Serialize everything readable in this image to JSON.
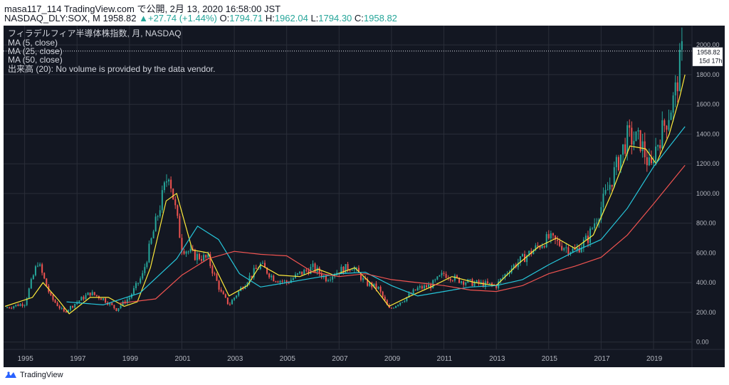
{
  "header": {
    "publish_line": "masa117_114 TradingView.com で公開, 2月 13, 2020 16:58:00 JST",
    "symbol": "NASDAQ_DLY:SOX, M",
    "last": "1958.82",
    "change": "+27.74 (+1.44%)",
    "o_label": "O:",
    "o_value": "1794.71",
    "h_label": "H:",
    "h_value": "1962.04",
    "l_label": "L:",
    "l_value": "1794.30",
    "c_label": "C:",
    "c_value": "1958.82"
  },
  "legend": {
    "title": "フィラデルフィア半導体株指数, 月, NASDAQ",
    "ma5": "MA (5, close)",
    "ma25": "MA (25, close)",
    "ma50": "MA (50, close)",
    "volume": "出来高 (20): No volume is provided by the data vendor."
  },
  "price_tag": {
    "price": "1958.82",
    "countdown": "15d 17h"
  },
  "footer": {
    "brand": "TradingView"
  },
  "colors": {
    "background": "#131722",
    "grid": "#2a2e39",
    "up": "#26a69a",
    "down": "#ef5350",
    "ma5": "#ffeb3b",
    "ma25": "#26c6da",
    "ma50": "#ef5350",
    "axis_text": "#b2b5be"
  },
  "chart_data": {
    "type": "candlestick",
    "interval": "1M",
    "x_range": [
      1994.25,
      2020.25
    ],
    "ylim": [
      -50,
      2130
    ],
    "y_ticks": [
      0,
      200,
      400,
      600,
      800,
      1000,
      1200,
      1400,
      1600,
      1800,
      2000
    ],
    "y_tick_labels": [
      "0.00",
      "200.00",
      "400.00",
      "600.00",
      "800.00",
      "1000.00",
      "1200.00",
      "1400.00",
      "1600.00",
      "1800.00",
      "2000.00"
    ],
    "x_ticks": [
      1995,
      1997,
      1999,
      2001,
      2003,
      2005,
      2007,
      2009,
      2011,
      2013,
      2015,
      2017,
      2019
    ],
    "x_tick_labels": [
      "1995",
      "1997",
      "1999",
      "2001",
      "2003",
      "2005",
      "2007",
      "2009",
      "2011",
      "2013",
      "2015",
      "2017",
      "2019"
    ],
    "yearly_closes": [
      [
        1994.25,
        230
      ],
      [
        1995.0,
        260
      ],
      [
        1995.5,
        540
      ],
      [
        1996.0,
        300
      ],
      [
        1996.5,
        200
      ],
      [
        1997.0,
        270
      ],
      [
        1997.5,
        330
      ],
      [
        1998.0,
        290
      ],
      [
        1998.5,
        220
      ],
      [
        1999.0,
        300
      ],
      [
        1999.5,
        450
      ],
      [
        2000.0,
        800
      ],
      [
        2000.5,
        1150
      ],
      [
        2001.0,
        640
      ],
      [
        2001.5,
        580
      ],
      [
        2002.0,
        560
      ],
      [
        2002.5,
        330
      ],
      [
        2002.8,
        250
      ],
      [
        2003.0,
        300
      ],
      [
        2003.5,
        420
      ],
      [
        2004.0,
        520
      ],
      [
        2004.5,
        430
      ],
      [
        2005.0,
        400
      ],
      [
        2005.5,
        460
      ],
      [
        2006.0,
        500
      ],
      [
        2006.5,
        430
      ],
      [
        2007.0,
        480
      ],
      [
        2007.5,
        510
      ],
      [
        2008.0,
        400
      ],
      [
        2008.5,
        360
      ],
      [
        2008.9,
        220
      ],
      [
        2009.0,
        230
      ],
      [
        2009.5,
        290
      ],
      [
        2010.0,
        360
      ],
      [
        2010.5,
        380
      ],
      [
        2011.0,
        460
      ],
      [
        2011.5,
        420
      ],
      [
        2012.0,
        400
      ],
      [
        2012.5,
        390
      ],
      [
        2013.0,
        380
      ],
      [
        2013.5,
        490
      ],
      [
        2014.0,
        560
      ],
      [
        2014.5,
        630
      ],
      [
        2015.0,
        700
      ],
      [
        2015.5,
        650
      ],
      [
        2016.0,
        610
      ],
      [
        2016.5,
        700
      ],
      [
        2017.0,
        910
      ],
      [
        2017.5,
        1140
      ],
      [
        2018.0,
        1380
      ],
      [
        2018.5,
        1350
      ],
      [
        2018.9,
        1150
      ],
      [
        2019.0,
        1270
      ],
      [
        2019.5,
        1500
      ],
      [
        2019.8,
        1650
      ],
      [
        2020.0,
        1860
      ],
      [
        2020.1,
        1958.82
      ]
    ],
    "ma_series": [
      {
        "name": "MA (5, close)",
        "points": [
          [
            1994.25,
            240
          ],
          [
            1995.3,
            300
          ],
          [
            1995.7,
            400
          ],
          [
            1996.3,
            280
          ],
          [
            1996.7,
            190
          ],
          [
            1997.5,
            300
          ],
          [
            1998.2,
            300
          ],
          [
            1998.8,
            240
          ],
          [
            1999.3,
            270
          ],
          [
            1999.8,
            500
          ],
          [
            2000.4,
            950
          ],
          [
            2000.8,
            1000
          ],
          [
            2001.4,
            620
          ],
          [
            2002.0,
            600
          ],
          [
            2002.8,
            310
          ],
          [
            2003.5,
            380
          ],
          [
            2004.0,
            520
          ],
          [
            2004.7,
            450
          ],
          [
            2005.5,
            440
          ],
          [
            2006.2,
            490
          ],
          [
            2006.8,
            450
          ],
          [
            2007.6,
            500
          ],
          [
            2008.3,
            380
          ],
          [
            2008.9,
            240
          ],
          [
            2009.6,
            300
          ],
          [
            2010.5,
            370
          ],
          [
            2011.3,
            440
          ],
          [
            2012.2,
            400
          ],
          [
            2013.0,
            380
          ],
          [
            2013.8,
            520
          ],
          [
            2014.6,
            640
          ],
          [
            2015.3,
            700
          ],
          [
            2016.0,
            630
          ],
          [
            2016.7,
            720
          ],
          [
            2017.4,
            1000
          ],
          [
            2018.1,
            1320
          ],
          [
            2018.7,
            1300
          ],
          [
            2019.1,
            1200
          ],
          [
            2019.6,
            1400
          ],
          [
            2020.0,
            1650
          ],
          [
            2020.2,
            1800
          ]
        ]
      },
      {
        "name": "MA (25, close)",
        "points": [
          [
            1996.6,
            270
          ],
          [
            1998.0,
            250
          ],
          [
            1999.4,
            330
          ],
          [
            2000.8,
            560
          ],
          [
            2001.6,
            780
          ],
          [
            2002.4,
            690
          ],
          [
            2003.2,
            460
          ],
          [
            2004.0,
            370
          ],
          [
            2005.0,
            400
          ],
          [
            2006.0,
            430
          ],
          [
            2007.0,
            460
          ],
          [
            2008.0,
            470
          ],
          [
            2009.0,
            380
          ],
          [
            2010.0,
            310
          ],
          [
            2011.0,
            340
          ],
          [
            2012.0,
            370
          ],
          [
            2013.0,
            380
          ],
          [
            2014.0,
            420
          ],
          [
            2015.0,
            520
          ],
          [
            2016.0,
            610
          ],
          [
            2017.0,
            690
          ],
          [
            2018.0,
            900
          ],
          [
            2019.0,
            1180
          ],
          [
            2020.2,
            1450
          ]
        ]
      },
      {
        "name": "MA (50, close)",
        "points": [
          [
            1998.6,
            260
          ],
          [
            2000.0,
            290
          ],
          [
            2001.0,
            450
          ],
          [
            2002.0,
            560
          ],
          [
            2003.0,
            610
          ],
          [
            2004.0,
            590
          ],
          [
            2005.0,
            580
          ],
          [
            2006.0,
            470
          ],
          [
            2007.0,
            440
          ],
          [
            2008.0,
            460
          ],
          [
            2009.0,
            420
          ],
          [
            2010.0,
            400
          ],
          [
            2011.0,
            380
          ],
          [
            2012.0,
            350
          ],
          [
            2013.0,
            340
          ],
          [
            2014.0,
            380
          ],
          [
            2015.0,
            460
          ],
          [
            2016.0,
            510
          ],
          [
            2017.0,
            570
          ],
          [
            2018.0,
            720
          ],
          [
            2019.0,
            930
          ],
          [
            2020.2,
            1190
          ]
        ]
      }
    ]
  }
}
